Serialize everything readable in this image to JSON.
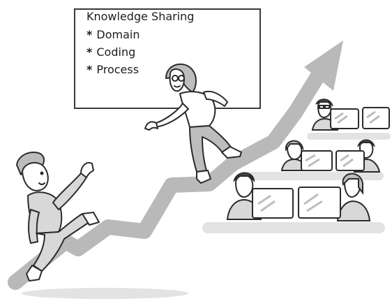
{
  "whiteboard": {
    "title": "Knowledge Sharing",
    "items": [
      {
        "bullet": "*",
        "label": "Domain"
      },
      {
        "bullet": "*",
        "label": "Coding"
      },
      {
        "bullet": "*",
        "label": "Process"
      }
    ]
  },
  "illustration": {
    "icons": [
      "growth-arrow-icon",
      "climbing-man-icon",
      "climbing-woman-icon",
      "laptop-icon",
      "team-member-icon"
    ],
    "colors": {
      "arrow": "#b9b9b9",
      "line": "#2b2b2b",
      "shade": "#cfcfcf",
      "skin": "#ffffff"
    }
  }
}
